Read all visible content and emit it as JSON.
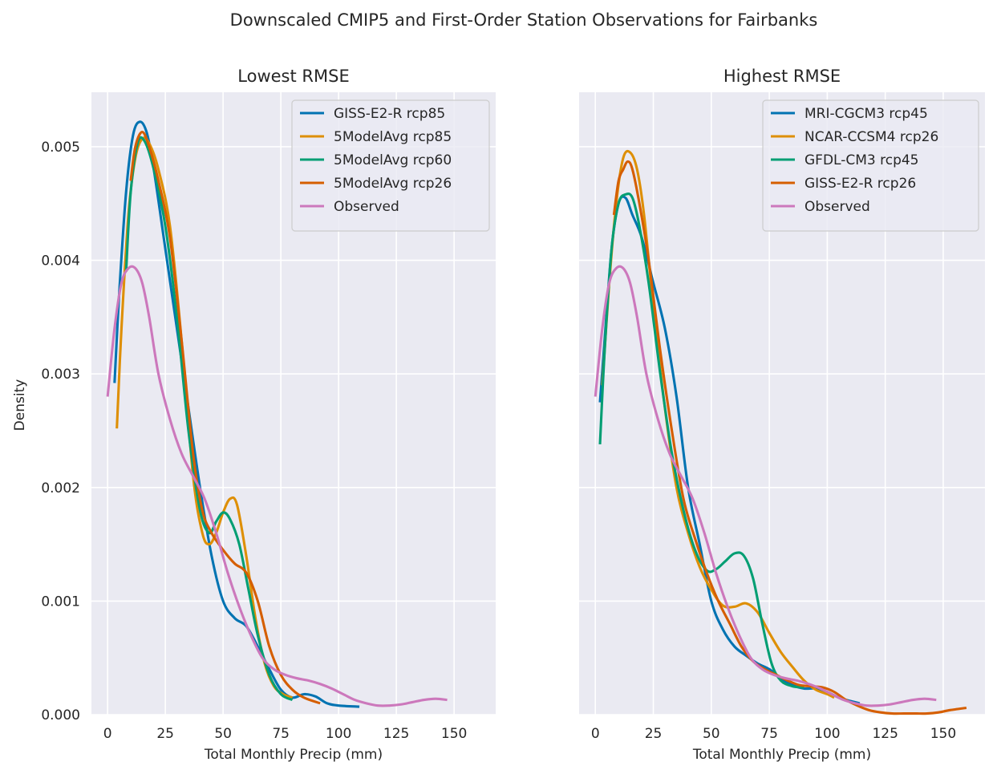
{
  "figure": {
    "title": "Downscaled CMIP5 and First-Order Station Observations for Fairbanks"
  },
  "chart_data": [
    {
      "type": "line",
      "title": "Lowest RMSE",
      "xlabel": "Total Monthly Precip (mm)",
      "ylabel": "Density",
      "xlim": [
        -7,
        168
      ],
      "ylim": [
        0,
        0.00548
      ],
      "xticks": [
        0,
        25,
        50,
        75,
        100,
        125,
        150
      ],
      "xtick_labels": [
        "0",
        "25",
        "50",
        "75",
        "100",
        "125",
        "150"
      ],
      "yticks": [
        0,
        0.001,
        0.002,
        0.003,
        0.004,
        0.005
      ],
      "ytick_labels": [
        "0.000",
        "0.001",
        "0.002",
        "0.003",
        "0.004",
        "0.005"
      ],
      "grid": true,
      "legend_position": "top-right",
      "series": [
        {
          "name": "GISS-E2-R rcp85",
          "color": "#0173b2",
          "x": [
            3,
            5,
            8,
            11,
            14,
            17,
            20,
            25,
            30,
            35,
            40,
            45,
            50,
            55,
            60,
            65,
            70,
            75,
            80,
            85,
            90,
            95,
            100,
            109
          ],
          "y": [
            0.00292,
            0.0037,
            0.0046,
            0.0051,
            0.00522,
            0.00512,
            0.0048,
            0.0041,
            0.0034,
            0.0027,
            0.002,
            0.0014,
            0.001,
            0.00085,
            0.00078,
            0.0006,
            0.0004,
            0.00022,
            0.00015,
            0.00018,
            0.00016,
            0.0001,
            8e-05,
            7e-05
          ]
        },
        {
          "name": "5ModelAvg rcp85",
          "color": "#de8f05",
          "x": [
            4,
            6,
            9,
            12,
            15,
            18,
            22,
            27,
            32,
            37,
            41,
            44,
            47,
            50,
            53,
            56,
            60,
            64,
            68,
            72,
            76,
            80
          ],
          "y": [
            0.00252,
            0.0034,
            0.0044,
            0.0049,
            0.00507,
            0.00503,
            0.0048,
            0.0043,
            0.0033,
            0.0021,
            0.0016,
            0.0015,
            0.0016,
            0.00178,
            0.0019,
            0.00185,
            0.0014,
            0.00085,
            0.00045,
            0.00025,
            0.00018,
            0.00015
          ]
        },
        {
          "name": "5ModelAvg rcp60",
          "color": "#029e73",
          "x": [
            8,
            10,
            13,
            16,
            20,
            25,
            30,
            35,
            40,
            44,
            47,
            50,
            53,
            57,
            61,
            65,
            70,
            75,
            80
          ],
          "y": [
            0.0039,
            0.0046,
            0.00503,
            0.00505,
            0.0048,
            0.0043,
            0.0035,
            0.0025,
            0.0018,
            0.0016,
            0.0017,
            0.00178,
            0.00172,
            0.0015,
            0.0011,
            0.0007,
            0.00035,
            0.00018,
            0.00013
          ]
        },
        {
          "name": "5ModelAvg rcp26",
          "color": "#d55e00",
          "x": [
            10,
            12,
            15,
            18,
            22,
            27,
            32,
            37,
            41,
            45,
            50,
            55,
            60,
            65,
            70,
            75,
            80,
            85,
            92
          ],
          "y": [
            0.0047,
            0.005,
            0.00513,
            0.005,
            0.0047,
            0.0042,
            0.0033,
            0.0023,
            0.0018,
            0.0016,
            0.00145,
            0.00133,
            0.00125,
            0.001,
            0.0006,
            0.00035,
            0.00022,
            0.00015,
            0.0001
          ]
        },
        {
          "name": "Observed",
          "color": "#cc78bc",
          "x": [
            0,
            3,
            6,
            9,
            12,
            15,
            18,
            22,
            27,
            32,
            37,
            42,
            47,
            52,
            57,
            62,
            67,
            72,
            77,
            82,
            87,
            92,
            97,
            102,
            107,
            112,
            117,
            122,
            127,
            132,
            137,
            142,
            147
          ],
          "y": [
            0.0028,
            0.0034,
            0.0038,
            0.00393,
            0.00393,
            0.0038,
            0.0035,
            0.003,
            0.0026,
            0.0023,
            0.0021,
            0.0019,
            0.0016,
            0.00125,
            0.00095,
            0.0007,
            0.0005,
            0.0004,
            0.00035,
            0.00032,
            0.0003,
            0.00027,
            0.00023,
            0.00018,
            0.00013,
            0.0001,
            8e-05,
            8e-05,
            9e-05,
            0.00011,
            0.00013,
            0.00014,
            0.00013
          ]
        }
      ]
    },
    {
      "type": "line",
      "title": "Highest RMSE",
      "xlabel": "Total Monthly Precip (mm)",
      "ylabel": "",
      "xlim": [
        -7,
        168
      ],
      "ylim": [
        0,
        0.00548
      ],
      "xticks": [
        0,
        25,
        50,
        75,
        100,
        125,
        150
      ],
      "xtick_labels": [
        "0",
        "25",
        "50",
        "75",
        "100",
        "125",
        "150"
      ],
      "yticks": [
        0,
        0.001,
        0.002,
        0.003,
        0.004,
        0.005
      ],
      "ytick_labels": [],
      "grid": true,
      "legend_position": "top-right",
      "series": [
        {
          "name": "MRI-CGCM3 rcp45",
          "color": "#0173b2",
          "x": [
            2,
            4,
            7,
            10,
            13,
            16,
            20,
            25,
            30,
            35,
            40,
            45,
            50,
            55,
            60,
            65,
            70,
            75,
            80,
            85,
            90,
            95,
            100,
            105,
            110,
            114
          ],
          "y": [
            0.00275,
            0.0033,
            0.0041,
            0.0045,
            0.00455,
            0.0044,
            0.0042,
            0.0038,
            0.0034,
            0.0028,
            0.002,
            0.0015,
            0.001,
            0.00075,
            0.0006,
            0.00052,
            0.00045,
            0.0004,
            0.00032,
            0.00026,
            0.00023,
            0.00023,
            0.0002,
            0.00015,
            0.00012,
            0.0001
          ]
        },
        {
          "name": "NCAR-CCSM4 rcp26",
          "color": "#de8f05",
          "x": [
            3,
            6,
            9,
            12,
            15,
            18,
            21,
            25,
            30,
            35,
            40,
            45,
            50,
            55,
            60,
            65,
            70,
            75,
            80,
            85,
            90,
            95,
            100,
            103
          ],
          "y": [
            0.0029,
            0.0038,
            0.0045,
            0.0049,
            0.00495,
            0.0048,
            0.0044,
            0.0036,
            0.0027,
            0.002,
            0.0016,
            0.0013,
            0.0011,
            0.00096,
            0.00095,
            0.00098,
            0.0009,
            0.00072,
            0.00055,
            0.00042,
            0.0003,
            0.00022,
            0.00018,
            0.00015
          ]
        },
        {
          "name": "GFDL-CM3 rcp45",
          "color": "#029e73",
          "x": [
            2,
            4,
            7,
            10,
            13,
            16,
            19,
            23,
            28,
            33,
            38,
            43,
            48,
            52,
            56,
            60,
            64,
            68,
            72,
            76,
            80,
            85,
            90
          ],
          "y": [
            0.00238,
            0.0032,
            0.0041,
            0.0045,
            0.00458,
            0.00455,
            0.0043,
            0.0038,
            0.003,
            0.0023,
            0.0018,
            0.00145,
            0.00127,
            0.00128,
            0.00135,
            0.00142,
            0.0014,
            0.0012,
            0.0008,
            0.00045,
            0.0003,
            0.00025,
            0.00024
          ]
        },
        {
          "name": "GISS-E2-R rcp26",
          "color": "#d55e00",
          "x": [
            8,
            10,
            12,
            14,
            16,
            19,
            23,
            28,
            33,
            38,
            43,
            48,
            53,
            58,
            63,
            68,
            73,
            78,
            83,
            88,
            93,
            98,
            103,
            108,
            113,
            118,
            123,
            128,
            133,
            138,
            143,
            148,
            153,
            160
          ],
          "y": [
            0.0044,
            0.0047,
            0.0048,
            0.00487,
            0.0048,
            0.0045,
            0.004,
            0.0032,
            0.0025,
            0.0019,
            0.00155,
            0.00125,
            0.001,
            0.0008,
            0.0006,
            0.00047,
            0.0004,
            0.00035,
            0.0003,
            0.00026,
            0.00025,
            0.00024,
            0.0002,
            0.00013,
            8e-05,
            4e-05,
            2e-05,
            1e-05,
            1e-05,
            1e-05,
            1e-05,
            2e-05,
            4e-05,
            6e-05
          ]
        },
        {
          "name": "Observed",
          "color": "#cc78bc",
          "x": [
            0,
            3,
            6,
            9,
            12,
            15,
            18,
            22,
            27,
            32,
            37,
            42,
            47,
            52,
            57,
            62,
            67,
            72,
            77,
            82,
            87,
            92,
            97,
            102,
            107,
            112,
            117,
            122,
            127,
            132,
            137,
            142,
            147
          ],
          "y": [
            0.0028,
            0.0034,
            0.0038,
            0.00393,
            0.00393,
            0.0038,
            0.0035,
            0.003,
            0.0026,
            0.0023,
            0.0021,
            0.0019,
            0.0016,
            0.00125,
            0.00095,
            0.0007,
            0.0005,
            0.0004,
            0.00035,
            0.00032,
            0.0003,
            0.00027,
            0.00023,
            0.00018,
            0.00013,
            0.0001,
            8e-05,
            8e-05,
            9e-05,
            0.00011,
            0.00013,
            0.00014,
            0.00013
          ]
        }
      ]
    }
  ]
}
